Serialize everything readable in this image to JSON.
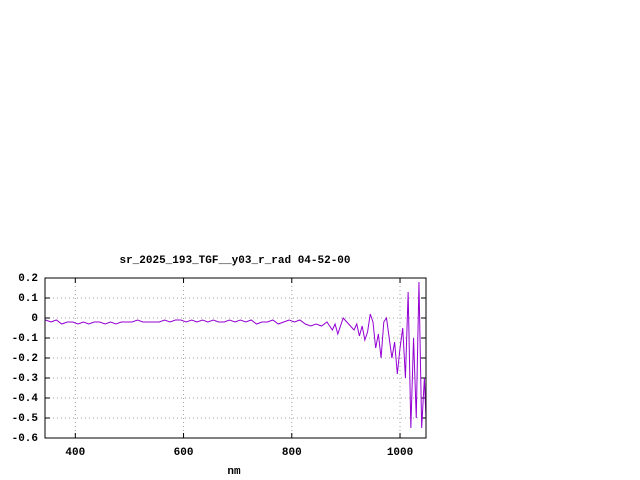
{
  "chart_data": {
    "type": "line",
    "title": "sr_2025_193_TGF__y03_r_rad 04-52-00",
    "xlabel": "nm",
    "x": [
      345,
      355,
      365,
      375,
      385,
      395,
      405,
      415,
      425,
      435,
      445,
      455,
      465,
      475,
      485,
      495,
      505,
      515,
      525,
      535,
      545,
      555,
      565,
      575,
      585,
      595,
      605,
      615,
      625,
      635,
      645,
      655,
      665,
      675,
      685,
      695,
      705,
      715,
      725,
      735,
      745,
      755,
      765,
      775,
      785,
      795,
      805,
      815,
      825,
      835,
      845,
      855,
      865,
      875,
      880,
      885,
      895,
      905,
      915,
      920,
      925,
      930,
      935,
      940,
      945,
      950,
      955,
      960,
      965,
      970,
      975,
      980,
      985,
      990,
      995,
      1000,
      1005,
      1010,
      1015,
      1020,
      1025,
      1030,
      1035,
      1040,
      1045,
      1048
    ],
    "series": [
      {
        "color": "#9400d3",
        "values": [
          -0.01,
          -0.02,
          -0.01,
          -0.03,
          -0.02,
          -0.02,
          -0.03,
          -0.02,
          -0.03,
          -0.02,
          -0.02,
          -0.03,
          -0.02,
          -0.03,
          -0.02,
          -0.02,
          -0.02,
          -0.01,
          -0.02,
          -0.02,
          -0.02,
          -0.02,
          -0.01,
          -0.02,
          -0.01,
          -0.01,
          -0.02,
          -0.01,
          -0.02,
          -0.01,
          -0.02,
          -0.01,
          -0.02,
          -0.02,
          -0.01,
          -0.02,
          -0.01,
          -0.02,
          -0.01,
          -0.03,
          -0.02,
          -0.02,
          -0.01,
          -0.03,
          -0.02,
          -0.01,
          -0.02,
          -0.01,
          -0.03,
          -0.04,
          -0.03,
          -0.04,
          -0.02,
          -0.06,
          -0.03,
          -0.08,
          0.0,
          -0.03,
          -0.06,
          -0.03,
          -0.09,
          -0.04,
          -0.11,
          -0.07,
          0.02,
          -0.02,
          -0.15,
          -0.08,
          -0.2,
          -0.02,
          0.0,
          -0.1,
          -0.2,
          -0.12,
          -0.28,
          -0.15,
          -0.05,
          -0.3,
          0.13,
          -0.55,
          -0.1,
          -0.5,
          0.18,
          -0.55,
          -0.3,
          -0.5
        ]
      }
    ],
    "xlim": [
      344,
      1048
    ],
    "ylim": [
      -0.6,
      0.2
    ],
    "xticks": [
      400,
      600,
      800,
      1000
    ],
    "yticks": [
      0.2,
      0.1,
      0,
      -0.1,
      -0.2,
      -0.3,
      -0.4,
      -0.5,
      -0.6
    ],
    "grid": true
  }
}
